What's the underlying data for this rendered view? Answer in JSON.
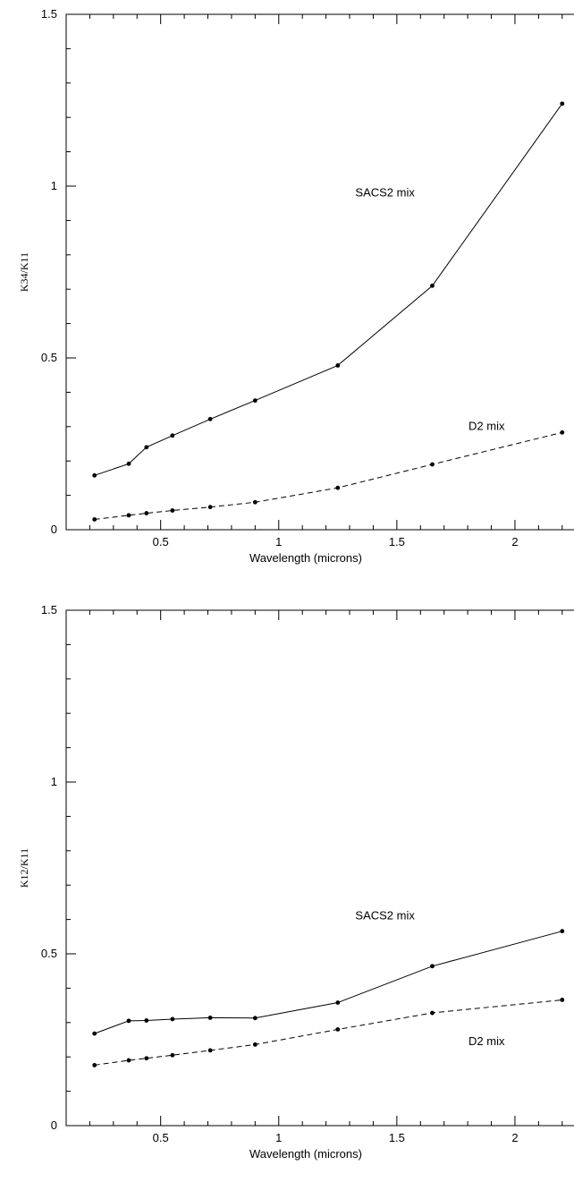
{
  "chart_data": [
    {
      "type": "line",
      "xlabel": "Wavelength (microns)",
      "ylabel": "K34/K11",
      "xlim": [
        0.1,
        2.25
      ],
      "ylim": [
        0,
        1.5
      ],
      "x_ticks": [
        "0.5",
        "1",
        "1.5",
        "2"
      ],
      "x_tick_values": [
        0.5,
        1,
        1.5,
        2
      ],
      "y_ticks": [
        "0",
        "0.5",
        "1",
        "1.5"
      ],
      "y_tick_values": [
        0,
        0.5,
        1,
        1.5
      ],
      "series": [
        {
          "name": "SACS2 mix",
          "style": "solid",
          "x": [
            0.22,
            0.365,
            0.44,
            0.55,
            0.71,
            0.9,
            1.25,
            1.65,
            2.2
          ],
          "values": [
            0.158,
            0.192,
            0.24,
            0.274,
            0.322,
            0.376,
            0.478,
            0.71,
            1.24
          ]
        },
        {
          "name": "D2 mix",
          "style": "dashed",
          "x": [
            0.22,
            0.365,
            0.44,
            0.55,
            0.71,
            0.9,
            1.25,
            1.65,
            2.2
          ],
          "values": [
            0.03,
            0.042,
            0.048,
            0.056,
            0.066,
            0.08,
            0.122,
            0.19,
            0.283
          ]
        }
      ],
      "annotations": [
        {
          "text": "SACS2 mix",
          "x": 1.45,
          "y": 0.97
        },
        {
          "text": "D2 mix",
          "x": 1.88,
          "y": 0.29
        }
      ]
    },
    {
      "type": "line",
      "xlabel": "Wavelength (microns)",
      "ylabel": "K12/K11",
      "xlim": [
        0.1,
        2.25
      ],
      "ylim": [
        0,
        1.5
      ],
      "x_ticks": [
        "0.5",
        "1",
        "1.5",
        "2"
      ],
      "x_tick_values": [
        0.5,
        1,
        1.5,
        2
      ],
      "y_ticks": [
        "0",
        "0.5",
        "1",
        "1.5"
      ],
      "y_tick_values": [
        0,
        0.5,
        1,
        1.5
      ],
      "series": [
        {
          "name": "SACS2 mix",
          "style": "solid",
          "x": [
            0.22,
            0.365,
            0.44,
            0.55,
            0.71,
            0.9,
            1.25,
            1.65,
            2.2
          ],
          "values": [
            0.268,
            0.305,
            0.306,
            0.31,
            0.314,
            0.313,
            0.358,
            0.464,
            0.566
          ]
        },
        {
          "name": "D2 mix",
          "style": "dashed",
          "x": [
            0.22,
            0.365,
            0.44,
            0.55,
            0.71,
            0.9,
            1.25,
            1.65,
            2.2
          ],
          "values": [
            0.176,
            0.19,
            0.196,
            0.205,
            0.219,
            0.236,
            0.28,
            0.328,
            0.366
          ]
        }
      ],
      "annotations": [
        {
          "text": "SACS2 mix",
          "x": 1.45,
          "y": 0.6
        },
        {
          "text": "D2 mix",
          "x": 1.88,
          "y": 0.235
        }
      ]
    }
  ]
}
